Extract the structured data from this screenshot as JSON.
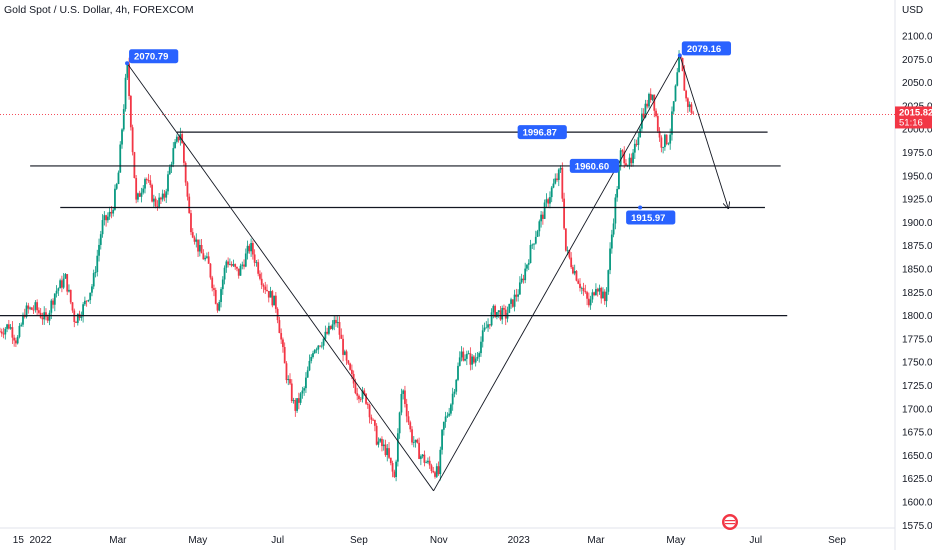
{
  "header": {
    "title": "Gold Spot / U.S. Dollar, 4h, FOREXCOM",
    "currency": "USD"
  },
  "price_tag": {
    "price": "2015.82",
    "countdown": "51:16"
  },
  "chart_data": {
    "type": "candlestick",
    "title": "Gold Spot / U.S. Dollar, 4h, FOREXCOM",
    "ylabel": "USD",
    "ylim": [
      1570,
      2110
    ],
    "xlim": [
      "2021-12-01",
      "2023-09-15"
    ],
    "y_ticks": [
      "2100.00",
      "2075.00",
      "2050.00",
      "2025.00",
      "2000.00",
      "1975.00",
      "1950.00",
      "1925.00",
      "1900.00",
      "1875.00",
      "1850.00",
      "1825.00",
      "1800.00",
      "1775.00",
      "1750.00",
      "1725.00",
      "1700.00",
      "1675.00",
      "1650.00",
      "1625.00",
      "1600.00",
      "1575.00"
    ],
    "x_ticks": [
      {
        "label": "15",
        "date": "2021-12-15"
      },
      {
        "label": "2022",
        "date": "2022-01-01"
      },
      {
        "label": "Mar",
        "date": "2022-03-01"
      },
      {
        "label": "May",
        "date": "2022-05-01"
      },
      {
        "label": "Jul",
        "date": "2022-07-01"
      },
      {
        "label": "Sep",
        "date": "2022-09-01"
      },
      {
        "label": "Nov",
        "date": "2022-11-01"
      },
      {
        "label": "2023",
        "date": "2023-01-01"
      },
      {
        "label": "Mar",
        "date": "2023-03-01"
      },
      {
        "label": "May",
        "date": "2023-05-01"
      },
      {
        "label": "Jul",
        "date": "2023-07-01"
      },
      {
        "label": "Sep",
        "date": "2023-09-01"
      }
    ],
    "price_path": [
      [
        "2021-12-01",
        1783
      ],
      [
        "2021-12-08",
        1790
      ],
      [
        "2021-12-14",
        1772
      ],
      [
        "2021-12-20",
        1805
      ],
      [
        "2021-12-28",
        1808
      ],
      [
        "2022-01-05",
        1795
      ],
      [
        "2022-01-12",
        1825
      ],
      [
        "2022-01-20",
        1840
      ],
      [
        "2022-01-27",
        1795
      ],
      [
        "2022-02-03",
        1810
      ],
      [
        "2022-02-10",
        1835
      ],
      [
        "2022-02-17",
        1898
      ],
      [
        "2022-02-24",
        1910
      ],
      [
        "2022-03-01",
        1945
      ],
      [
        "2022-03-08",
        2070
      ],
      [
        "2022-03-15",
        1920
      ],
      [
        "2022-03-22",
        1950
      ],
      [
        "2022-03-29",
        1920
      ],
      [
        "2022-04-05",
        1925
      ],
      [
        "2022-04-12",
        1975
      ],
      [
        "2022-04-18",
        1998
      ],
      [
        "2022-04-25",
        1900
      ],
      [
        "2022-05-02",
        1870
      ],
      [
        "2022-05-09",
        1855
      ],
      [
        "2022-05-16",
        1810
      ],
      [
        "2022-05-23",
        1860
      ],
      [
        "2022-06-01",
        1845
      ],
      [
        "2022-06-10",
        1875
      ],
      [
        "2022-06-20",
        1835
      ],
      [
        "2022-06-30",
        1810
      ],
      [
        "2022-07-07",
        1740
      ],
      [
        "2022-07-14",
        1700
      ],
      [
        "2022-07-21",
        1720
      ],
      [
        "2022-07-28",
        1765
      ],
      [
        "2022-08-05",
        1775
      ],
      [
        "2022-08-15",
        1795
      ],
      [
        "2022-08-22",
        1750
      ],
      [
        "2022-08-30",
        1720
      ],
      [
        "2022-09-07",
        1710
      ],
      [
        "2022-09-15",
        1665
      ],
      [
        "2022-09-22",
        1655
      ],
      [
        "2022-09-28",
        1625
      ],
      [
        "2022-10-04",
        1725
      ],
      [
        "2022-10-11",
        1670
      ],
      [
        "2022-10-18",
        1650
      ],
      [
        "2022-10-24",
        1640
      ],
      [
        "2022-11-01",
        1630
      ],
      [
        "2022-11-04",
        1680
      ],
      [
        "2022-11-10",
        1705
      ],
      [
        "2022-11-18",
        1760
      ],
      [
        "2022-11-28",
        1750
      ],
      [
        "2022-12-05",
        1780
      ],
      [
        "2022-12-13",
        1805
      ],
      [
        "2022-12-22",
        1800
      ],
      [
        "2023-01-02",
        1830
      ],
      [
        "2023-01-12",
        1880
      ],
      [
        "2023-01-26",
        1935
      ],
      [
        "2023-02-02",
        1955
      ],
      [
        "2023-02-06",
        1870
      ],
      [
        "2023-02-15",
        1840
      ],
      [
        "2023-02-24",
        1810
      ],
      [
        "2023-03-01",
        1835
      ],
      [
        "2023-03-08",
        1815
      ],
      [
        "2023-03-14",
        1900
      ],
      [
        "2023-03-20",
        1975
      ],
      [
        "2023-03-28",
        1960
      ],
      [
        "2023-04-05",
        2015
      ],
      [
        "2023-04-13",
        2040
      ],
      [
        "2023-04-19",
        1985
      ],
      [
        "2023-04-26",
        1990
      ],
      [
        "2023-05-04",
        2079
      ],
      [
        "2023-05-09",
        2030
      ],
      [
        "2023-05-15",
        2015
      ]
    ],
    "horizontal_levels": [
      {
        "price": 1996.87,
        "label": "1996.87"
      },
      {
        "price": 1960.6,
        "label": "1960.60"
      },
      {
        "price": 1915.97,
        "label": "1915.97"
      },
      {
        "price": 1800.0
      }
    ],
    "peak_labels": [
      {
        "date": "2022-03-08",
        "price": 2070.79,
        "label": "2070.79"
      },
      {
        "date": "2023-05-04",
        "price": 2079.16,
        "label": "2079.16"
      }
    ],
    "trend_lines": [
      {
        "from": [
          "2022-03-08",
          2070.79
        ],
        "to": [
          "2022-10-28",
          1612
        ]
      },
      {
        "from": [
          "2022-10-28",
          1612
        ],
        "to": [
          "2023-05-04",
          2079.16
        ]
      },
      {
        "from": [
          "2023-05-04",
          2079.16
        ],
        "to": [
          "2023-06-10",
          1915
        ],
        "arrow": true
      }
    ],
    "last_price": 2015.82
  }
}
